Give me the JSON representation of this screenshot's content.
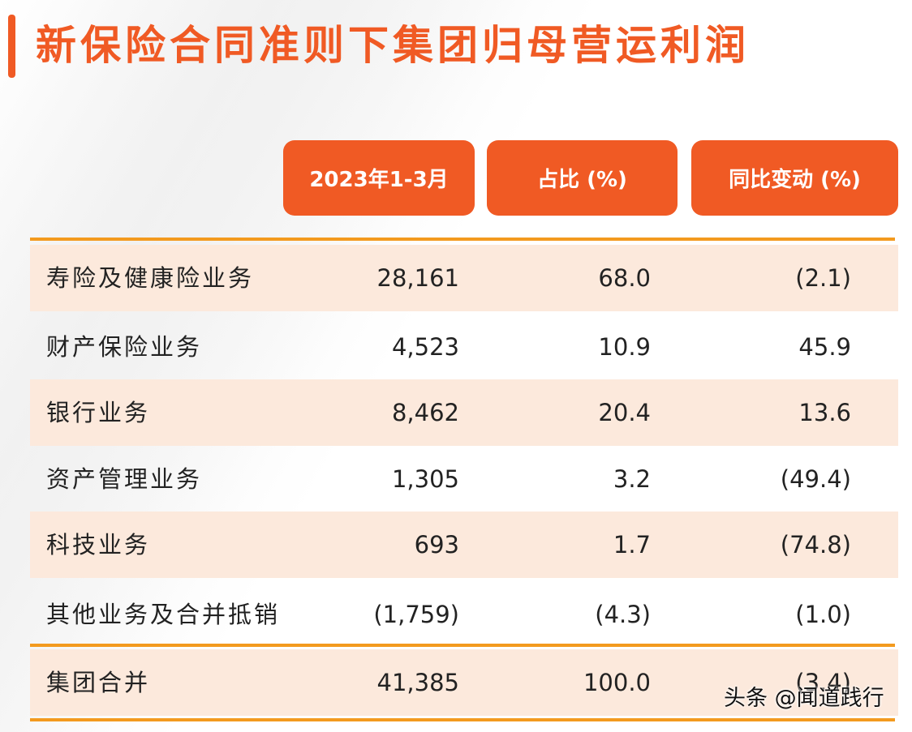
{
  "title": "新保险合同准则下集团归母营运利润",
  "headers": [
    "2023年1-3月",
    "占比 (%)",
    "同比变动 (%)"
  ],
  "rows": [
    {
      "label": "寿险及健康险业务",
      "v1": "28,161",
      "v2": "68.0",
      "v3": "(2.1)"
    },
    {
      "label": "财产保险业务",
      "v1": "4,523",
      "v2": "10.9",
      "v3": "45.9"
    },
    {
      "label": "银行业务",
      "v1": "8,462",
      "v2": "20.4",
      "v3": "13.6"
    },
    {
      "label": "资产管理业务",
      "v1": "1,305",
      "v2": "3.2",
      "v3": "(49.4)"
    },
    {
      "label": "科技业务",
      "v1": "693",
      "v2": "1.7",
      "v3": "(74.8)"
    },
    {
      "label": "其他业务及合并抵销",
      "v1": "(1,759)",
      "v2": "(4.3)",
      "v3": "(1.0)"
    },
    {
      "label": "集团合并",
      "v1": "41,385",
      "v2": "100.0",
      "v3": "(3.4)"
    }
  ],
  "watermark": "头条 @闻道践行",
  "colors": {
    "accent": "#f05a24",
    "rule": "#f39a1e",
    "shade": "#fce9dc"
  }
}
